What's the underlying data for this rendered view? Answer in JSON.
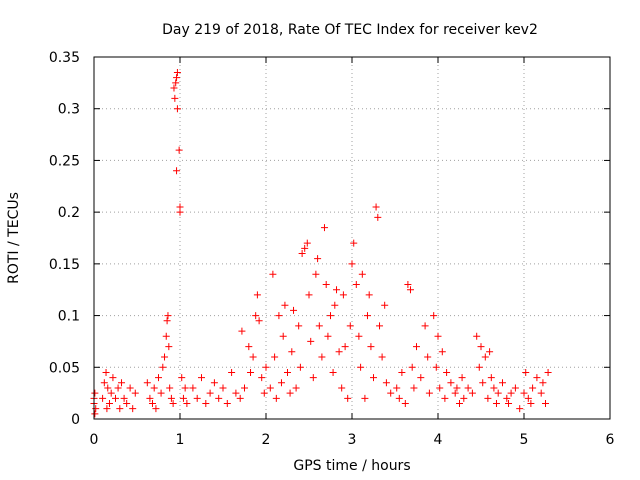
{
  "chart_data": {
    "type": "scatter",
    "title": "Day 219 of 2018, Rate Of TEC Index for receiver kev2",
    "xlabel": "GPS time / hours",
    "ylabel": "ROTI / TECUs",
    "xlim": [
      0,
      6
    ],
    "ylim": [
      0,
      0.35
    ],
    "x_ticks": [
      0,
      1,
      2,
      3,
      4,
      5,
      6
    ],
    "y_ticks": [
      0,
      0.05,
      0.1,
      0.15,
      0.2,
      0.25,
      0.3,
      0.35
    ],
    "x_tick_labels": [
      "0",
      "1",
      "2",
      "3",
      "4",
      "5",
      "6"
    ],
    "y_tick_labels": [
      "0",
      "0.05",
      "0.1",
      "0.15",
      "0.2",
      "0.25",
      "0.3",
      "0.35"
    ],
    "grid": true,
    "marker": "+",
    "series_color": "#ff0000",
    "series": [
      {
        "name": "ROTI",
        "points": [
          [
            0.0,
            0.02
          ],
          [
            0.0,
            0.015
          ],
          [
            0.01,
            0.005
          ],
          [
            0.01,
            0.025
          ],
          [
            0.02,
            0.01
          ],
          [
            0.1,
            0.02
          ],
          [
            0.12,
            0.035
          ],
          [
            0.14,
            0.045
          ],
          [
            0.15,
            0.01
          ],
          [
            0.16,
            0.03
          ],
          [
            0.18,
            0.015
          ],
          [
            0.2,
            0.025
          ],
          [
            0.22,
            0.04
          ],
          [
            0.25,
            0.02
          ],
          [
            0.28,
            0.03
          ],
          [
            0.3,
            0.01
          ],
          [
            0.32,
            0.035
          ],
          [
            0.35,
            0.02
          ],
          [
            0.38,
            0.015
          ],
          [
            0.42,
            0.03
          ],
          [
            0.45,
            0.01
          ],
          [
            0.48,
            0.025
          ],
          [
            0.62,
            0.035
          ],
          [
            0.65,
            0.02
          ],
          [
            0.68,
            0.015
          ],
          [
            0.7,
            0.03
          ],
          [
            0.72,
            0.01
          ],
          [
            0.75,
            0.04
          ],
          [
            0.78,
            0.025
          ],
          [
            0.8,
            0.05
          ],
          [
            0.82,
            0.06
          ],
          [
            0.84,
            0.08
          ],
          [
            0.85,
            0.095
          ],
          [
            0.86,
            0.1
          ],
          [
            0.87,
            0.07
          ],
          [
            0.88,
            0.03
          ],
          [
            0.9,
            0.02
          ],
          [
            0.92,
            0.015
          ],
          [
            0.93,
            0.32
          ],
          [
            0.94,
            0.31
          ],
          [
            0.95,
            0.325
          ],
          [
            0.96,
            0.33
          ],
          [
            0.97,
            0.335
          ],
          [
            0.97,
            0.3
          ],
          [
            0.96,
            0.24
          ],
          [
            0.99,
            0.26
          ],
          [
            1.0,
            0.205
          ],
          [
            1.0,
            0.2
          ],
          [
            1.02,
            0.04
          ],
          [
            1.04,
            0.02
          ],
          [
            1.06,
            0.03
          ],
          [
            1.08,
            0.015
          ],
          [
            1.15,
            0.03
          ],
          [
            1.2,
            0.02
          ],
          [
            1.25,
            0.04
          ],
          [
            1.3,
            0.015
          ],
          [
            1.35,
            0.025
          ],
          [
            1.4,
            0.035
          ],
          [
            1.45,
            0.02
          ],
          [
            1.5,
            0.03
          ],
          [
            1.55,
            0.015
          ],
          [
            1.6,
            0.045
          ],
          [
            1.65,
            0.025
          ],
          [
            1.7,
            0.02
          ],
          [
            1.72,
            0.085
          ],
          [
            1.75,
            0.03
          ],
          [
            1.8,
            0.07
          ],
          [
            1.82,
            0.045
          ],
          [
            1.85,
            0.06
          ],
          [
            1.88,
            0.1
          ],
          [
            1.9,
            0.12
          ],
          [
            1.92,
            0.095
          ],
          [
            1.95,
            0.04
          ],
          [
            1.98,
            0.025
          ],
          [
            2.0,
            0.05
          ],
          [
            2.05,
            0.03
          ],
          [
            2.08,
            0.14
          ],
          [
            2.1,
            0.06
          ],
          [
            2.12,
            0.02
          ],
          [
            2.15,
            0.1
          ],
          [
            2.18,
            0.035
          ],
          [
            2.2,
            0.08
          ],
          [
            2.22,
            0.11
          ],
          [
            2.25,
            0.045
          ],
          [
            2.28,
            0.025
          ],
          [
            2.3,
            0.065
          ],
          [
            2.32,
            0.105
          ],
          [
            2.35,
            0.03
          ],
          [
            2.38,
            0.09
          ],
          [
            2.4,
            0.05
          ],
          [
            2.42,
            0.16
          ],
          [
            2.45,
            0.165
          ],
          [
            2.48,
            0.17
          ],
          [
            2.5,
            0.12
          ],
          [
            2.52,
            0.075
          ],
          [
            2.55,
            0.04
          ],
          [
            2.58,
            0.14
          ],
          [
            2.6,
            0.155
          ],
          [
            2.62,
            0.09
          ],
          [
            2.65,
            0.06
          ],
          [
            2.68,
            0.185
          ],
          [
            2.7,
            0.13
          ],
          [
            2.72,
            0.08
          ],
          [
            2.75,
            0.1
          ],
          [
            2.78,
            0.045
          ],
          [
            2.8,
            0.11
          ],
          [
            2.82,
            0.125
          ],
          [
            2.85,
            0.065
          ],
          [
            2.88,
            0.03
          ],
          [
            2.9,
            0.12
          ],
          [
            2.92,
            0.07
          ],
          [
            2.95,
            0.02
          ],
          [
            2.98,
            0.09
          ],
          [
            3.0,
            0.15
          ],
          [
            3.02,
            0.17
          ],
          [
            3.05,
            0.13
          ],
          [
            3.08,
            0.08
          ],
          [
            3.1,
            0.05
          ],
          [
            3.12,
            0.14
          ],
          [
            3.15,
            0.02
          ],
          [
            3.18,
            0.1
          ],
          [
            3.2,
            0.12
          ],
          [
            3.22,
            0.07
          ],
          [
            3.25,
            0.04
          ],
          [
            3.28,
            0.205
          ],
          [
            3.3,
            0.195
          ],
          [
            3.32,
            0.09
          ],
          [
            3.35,
            0.06
          ],
          [
            3.38,
            0.11
          ],
          [
            3.4,
            0.035
          ],
          [
            3.45,
            0.025
          ],
          [
            3.52,
            0.03
          ],
          [
            3.55,
            0.02
          ],
          [
            3.58,
            0.045
          ],
          [
            3.62,
            0.015
          ],
          [
            3.65,
            0.13
          ],
          [
            3.68,
            0.125
          ],
          [
            3.7,
            0.05
          ],
          [
            3.72,
            0.03
          ],
          [
            3.75,
            0.07
          ],
          [
            3.8,
            0.04
          ],
          [
            3.85,
            0.09
          ],
          [
            3.88,
            0.06
          ],
          [
            3.9,
            0.025
          ],
          [
            3.95,
            0.1
          ],
          [
            3.98,
            0.05
          ],
          [
            4.0,
            0.08
          ],
          [
            4.02,
            0.03
          ],
          [
            4.05,
            0.065
          ],
          [
            4.08,
            0.02
          ],
          [
            4.1,
            0.045
          ],
          [
            4.15,
            0.035
          ],
          [
            4.2,
            0.025
          ],
          [
            4.22,
            0.03
          ],
          [
            4.25,
            0.015
          ],
          [
            4.28,
            0.04
          ],
          [
            4.3,
            0.02
          ],
          [
            4.35,
            0.03
          ],
          [
            4.4,
            0.025
          ],
          [
            4.45,
            0.08
          ],
          [
            4.48,
            0.05
          ],
          [
            4.5,
            0.07
          ],
          [
            4.52,
            0.035
          ],
          [
            4.55,
            0.06
          ],
          [
            4.58,
            0.02
          ],
          [
            4.6,
            0.065
          ],
          [
            4.62,
            0.04
          ],
          [
            4.65,
            0.03
          ],
          [
            4.68,
            0.015
          ],
          [
            4.7,
            0.025
          ],
          [
            4.75,
            0.035
          ],
          [
            4.8,
            0.02
          ],
          [
            4.82,
            0.015
          ],
          [
            4.85,
            0.025
          ],
          [
            4.9,
            0.03
          ],
          [
            4.95,
            0.01
          ],
          [
            5.0,
            0.025
          ],
          [
            5.02,
            0.045
          ],
          [
            5.05,
            0.02
          ],
          [
            5.08,
            0.015
          ],
          [
            5.1,
            0.03
          ],
          [
            5.15,
            0.04
          ],
          [
            5.2,
            0.025
          ],
          [
            5.22,
            0.035
          ],
          [
            5.25,
            0.015
          ],
          [
            5.28,
            0.045
          ]
        ]
      }
    ]
  }
}
